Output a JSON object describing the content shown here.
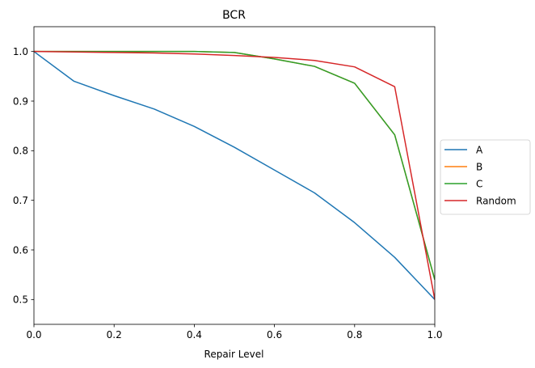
{
  "chart_data": {
    "type": "line",
    "title": "BCR",
    "xlabel": "Repair Level",
    "ylabel": "",
    "xlim": [
      0.0,
      1.0
    ],
    "ylim": [
      0.45,
      1.05
    ],
    "x_ticks": [
      0.0,
      0.2,
      0.4,
      0.6,
      0.8,
      1.0
    ],
    "x_tick_labels": [
      "0.0",
      "0.2",
      "0.4",
      "0.6",
      "0.8",
      "1.0"
    ],
    "y_ticks": [
      0.5,
      0.6,
      0.7,
      0.8,
      0.9,
      1.0
    ],
    "y_tick_labels": [
      "0.5",
      "0.6",
      "0.7",
      "0.8",
      "0.9",
      "1.0"
    ],
    "grid": false,
    "legend_position": "center-right-outside",
    "x": [
      0.0,
      0.1,
      0.2,
      0.3,
      0.4,
      0.5,
      0.6,
      0.7,
      0.8,
      0.9,
      1.0
    ],
    "series": [
      {
        "name": "A",
        "color": "#1f77b4",
        "values": [
          1.0,
          0.94,
          0.911,
          0.884,
          0.849,
          0.807,
          0.761,
          0.715,
          0.655,
          0.585,
          0.5
        ]
      },
      {
        "name": "B",
        "color": "#ff7f0e",
        "values": [
          1.0,
          1.0,
          1.0,
          1.0,
          1.0,
          0.998,
          0.985,
          0.97,
          0.936,
          0.832,
          0.54
        ]
      },
      {
        "name": "C",
        "color": "#2ca02c",
        "values": [
          1.0,
          1.0,
          1.0,
          1.0,
          1.0,
          0.998,
          0.985,
          0.97,
          0.936,
          0.832,
          0.54
        ]
      },
      {
        "name": "Random",
        "color": "#d62728",
        "values": [
          1.0,
          0.999,
          0.998,
          0.997,
          0.995,
          0.992,
          0.988,
          0.982,
          0.969,
          0.929,
          0.5
        ]
      }
    ]
  }
}
